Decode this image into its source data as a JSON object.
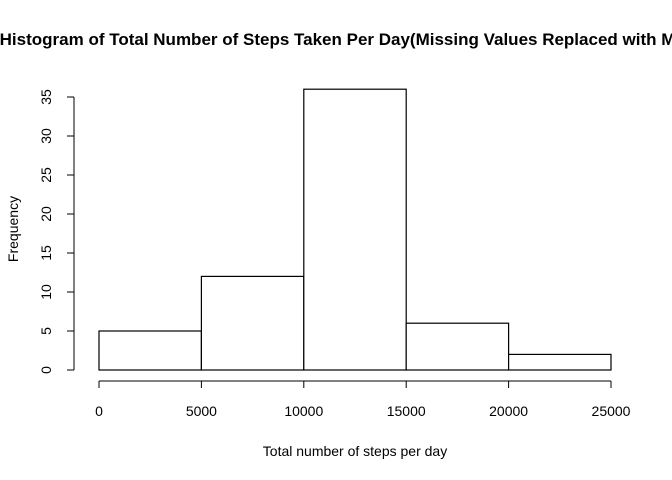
{
  "chart_data": {
    "type": "bar",
    "title": "Histogram of Total Number of Steps Taken Per Day(Missing Values Replaced with Mean)",
    "xlabel": "Total number of steps per day",
    "ylabel": "Frequency",
    "bins": [
      {
        "from": 0,
        "to": 5000,
        "count": 5
      },
      {
        "from": 5000,
        "to": 10000,
        "count": 12
      },
      {
        "from": 10000,
        "to": 15000,
        "count": 36
      },
      {
        "from": 15000,
        "to": 20000,
        "count": 6
      },
      {
        "from": 20000,
        "to": 25000,
        "count": 2
      }
    ],
    "xticks": [
      "0",
      "5000",
      "10000",
      "15000",
      "20000",
      "25000"
    ],
    "yticks": [
      "0",
      "5",
      "10",
      "15",
      "20",
      "25",
      "30",
      "35"
    ],
    "xlim": [
      0,
      25000
    ],
    "ylim": [
      0,
      36
    ],
    "grid": false,
    "legend": "none",
    "colors": {
      "fill": "#ffffff",
      "stroke": "#000000"
    }
  }
}
